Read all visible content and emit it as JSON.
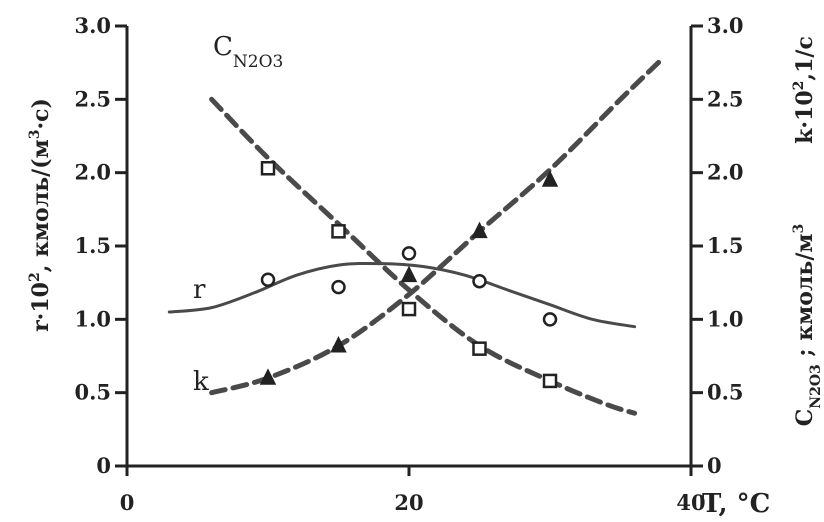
{
  "chart_data": {
    "type": "line",
    "xlabel": "T, °C",
    "ylabel_left": "r·10², кмоль/(м³·с)",
    "ylabel_right": "k·10², 1/с ;  C_N2O3, кмоль/м³",
    "xlim": [
      0,
      40
    ],
    "ylim_left": [
      0,
      3.0
    ],
    "ylim_right": [
      0,
      3.0
    ],
    "x_ticks": [
      "0",
      "20",
      "40"
    ],
    "y_ticks_left": [
      "0",
      "0.5",
      "1.0",
      "1.5",
      "2.0",
      "2.5",
      "3.0"
    ],
    "y_ticks_right": [
      "0",
      "0.5",
      "1.0",
      "1.5",
      "2.0",
      "2.5",
      "3.0"
    ],
    "grid": false,
    "series": [
      {
        "name": "r",
        "axis": "left",
        "style": "solid",
        "curve": [
          [
            3,
            1.05
          ],
          [
            6,
            1.08
          ],
          [
            9,
            1.18
          ],
          [
            12,
            1.3
          ],
          [
            15,
            1.37
          ],
          [
            18,
            1.38
          ],
          [
            21,
            1.36
          ],
          [
            24,
            1.3
          ],
          [
            27,
            1.2
          ],
          [
            30,
            1.1
          ],
          [
            33,
            1.0
          ],
          [
            36,
            0.95
          ]
        ],
        "marker": "circle",
        "points": [
          [
            10,
            1.27
          ],
          [
            15,
            1.22
          ],
          [
            20,
            1.45
          ],
          [
            25,
            1.26
          ],
          [
            30,
            1.0
          ]
        ]
      },
      {
        "name": "k",
        "axis": "right",
        "style": "dashed",
        "curve": [
          [
            6,
            0.5
          ],
          [
            10,
            0.6
          ],
          [
            15,
            0.82
          ],
          [
            20,
            1.17
          ],
          [
            25,
            1.6
          ],
          [
            30,
            2.02
          ],
          [
            35,
            2.5
          ],
          [
            38,
            2.78
          ]
        ],
        "marker": "triangle",
        "points": [
          [
            10,
            0.6
          ],
          [
            15,
            0.82
          ],
          [
            20,
            1.3
          ],
          [
            25,
            1.6
          ],
          [
            30,
            1.95
          ]
        ]
      },
      {
        "name": "C_N2O3",
        "axis": "right",
        "style": "dashed",
        "curve": [
          [
            6,
            2.5
          ],
          [
            10,
            2.1
          ],
          [
            15,
            1.65
          ],
          [
            20,
            1.2
          ],
          [
            25,
            0.82
          ],
          [
            30,
            0.58
          ],
          [
            34,
            0.42
          ],
          [
            36,
            0.36
          ]
        ],
        "marker": "square",
        "points": [
          [
            10,
            2.03
          ],
          [
            15,
            1.6
          ],
          [
            20,
            1.07
          ],
          [
            25,
            0.8
          ],
          [
            30,
            0.58
          ]
        ]
      }
    ],
    "curve_labels": {
      "r": {
        "base": "r"
      },
      "k": {
        "base": "k"
      },
      "C": {
        "base": "C",
        "sub": "N2O3"
      }
    },
    "xlabel_parts": {
      "main": "T, ",
      "unit": "°C"
    },
    "ylabel_left_parts": {
      "main": "r·10",
      "sup": "2",
      "rest": ", кмоль/(м",
      "sup2": "3",
      "rest2": "·с)"
    },
    "ylabel_right_top_parts": {
      "main": "k·10",
      "sup": "2",
      "rest": ",1/с"
    },
    "ylabel_right_bottom_parts": {
      "main": "C",
      "sub": "N2O3",
      "sep": " ; ",
      "rest": "кмоль/м",
      "sup": "3"
    },
    "colors": {
      "ink": "#222222",
      "curve": "#4a4a4a"
    }
  }
}
